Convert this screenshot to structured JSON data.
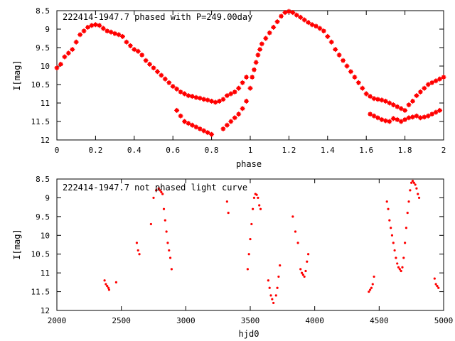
{
  "chart_data": [
    {
      "type": "scatter",
      "title": "222414-1947.7 phased with P=249.00day",
      "xlabel": "phase",
      "ylabel": "I[mag]",
      "xlim": [
        0,
        2
      ],
      "ylim": [
        8.5,
        12
      ],
      "y_inverted": true,
      "grid": false,
      "legend": "none",
      "xticks": [
        "0",
        "0.2",
        "0.4",
        "0.6",
        "0.8",
        "1",
        "1.2",
        "1.4",
        "1.6",
        "1.8",
        "2"
      ],
      "xtick_values": [
        0,
        0.2,
        0.4,
        0.6,
        0.8,
        1.0,
        1.2,
        1.4,
        1.6,
        1.8,
        2.0
      ],
      "yticks": [
        "8.5",
        "9",
        "9.5",
        "10",
        "10.5",
        "11",
        "11.5",
        "12"
      ],
      "ytick_values": [
        8.5,
        9.0,
        9.5,
        10.0,
        10.5,
        11.0,
        11.5,
        12.0
      ],
      "marker": "plus-square",
      "color": "#ff0000",
      "series": [
        {
          "points": [
            [
              0.0,
              10.05
            ],
            [
              0.02,
              9.95
            ],
            [
              0.04,
              9.75
            ],
            [
              0.06,
              9.65
            ],
            [
              0.08,
              9.55
            ],
            [
              0.1,
              9.35
            ],
            [
              0.12,
              9.15
            ],
            [
              0.14,
              9.05
            ],
            [
              0.16,
              8.95
            ],
            [
              0.18,
              8.9
            ],
            [
              0.2,
              8.88
            ],
            [
              0.22,
              8.9
            ],
            [
              0.24,
              8.98
            ],
            [
              0.26,
              9.05
            ],
            [
              0.28,
              9.08
            ],
            [
              0.3,
              9.12
            ],
            [
              0.32,
              9.15
            ],
            [
              0.34,
              9.2
            ],
            [
              0.36,
              9.35
            ],
            [
              0.38,
              9.45
            ],
            [
              0.4,
              9.55
            ],
            [
              0.42,
              9.6
            ],
            [
              0.44,
              9.7
            ],
            [
              0.46,
              9.85
            ],
            [
              0.48,
              9.95
            ],
            [
              0.5,
              10.05
            ],
            [
              0.52,
              10.15
            ],
            [
              0.54,
              10.25
            ],
            [
              0.56,
              10.35
            ],
            [
              0.58,
              10.45
            ],
            [
              0.6,
              10.55
            ],
            [
              0.62,
              10.62
            ],
            [
              0.64,
              10.7
            ],
            [
              0.66,
              10.75
            ],
            [
              0.68,
              10.8
            ],
            [
              0.7,
              10.82
            ],
            [
              0.72,
              10.85
            ],
            [
              0.74,
              10.87
            ],
            [
              0.76,
              10.9
            ],
            [
              0.78,
              10.92
            ],
            [
              0.8,
              10.95
            ],
            [
              0.82,
              10.98
            ],
            [
              0.84,
              10.95
            ],
            [
              0.86,
              10.9
            ],
            [
              0.88,
              10.8
            ],
            [
              0.9,
              10.75
            ],
            [
              0.92,
              10.7
            ],
            [
              0.94,
              10.6
            ],
            [
              0.96,
              10.45
            ],
            [
              0.98,
              10.3
            ],
            [
              0.62,
              11.2
            ],
            [
              0.64,
              11.35
            ],
            [
              0.66,
              11.5
            ],
            [
              0.68,
              11.55
            ],
            [
              0.7,
              11.6
            ],
            [
              0.72,
              11.65
            ],
            [
              0.74,
              11.7
            ],
            [
              0.76,
              11.75
            ],
            [
              0.78,
              11.8
            ],
            [
              0.8,
              11.85
            ],
            [
              0.86,
              11.7
            ],
            [
              0.88,
              11.6
            ],
            [
              0.9,
              11.5
            ],
            [
              0.92,
              11.4
            ],
            [
              0.94,
              11.3
            ],
            [
              0.96,
              11.15
            ],
            [
              0.98,
              10.95
            ],
            [
              1.0,
              10.6
            ],
            [
              1.01,
              10.3
            ],
            [
              1.02,
              10.1
            ],
            [
              1.03,
              9.9
            ],
            [
              1.04,
              9.7
            ],
            [
              1.05,
              9.55
            ],
            [
              1.06,
              9.4
            ],
            [
              1.08,
              9.25
            ],
            [
              1.1,
              9.1
            ],
            [
              1.12,
              8.95
            ],
            [
              1.14,
              8.8
            ],
            [
              1.16,
              8.65
            ],
            [
              1.18,
              8.55
            ],
            [
              1.2,
              8.52
            ],
            [
              1.22,
              8.55
            ],
            [
              1.24,
              8.62
            ],
            [
              1.26,
              8.68
            ],
            [
              1.28,
              8.75
            ],
            [
              1.3,
              8.82
            ],
            [
              1.32,
              8.88
            ],
            [
              1.34,
              8.92
            ],
            [
              1.36,
              8.98
            ],
            [
              1.38,
              9.05
            ],
            [
              1.4,
              9.2
            ],
            [
              1.42,
              9.35
            ],
            [
              1.44,
              9.55
            ],
            [
              1.46,
              9.7
            ],
            [
              1.48,
              9.85
            ],
            [
              1.5,
              10.0
            ],
            [
              1.52,
              10.15
            ],
            [
              1.54,
              10.3
            ],
            [
              1.56,
              10.45
            ],
            [
              1.58,
              10.6
            ],
            [
              1.6,
              10.75
            ],
            [
              1.62,
              10.82
            ],
            [
              1.64,
              10.88
            ],
            [
              1.66,
              10.9
            ],
            [
              1.68,
              10.92
            ],
            [
              1.7,
              10.95
            ],
            [
              1.72,
              11.0
            ],
            [
              1.74,
              11.05
            ],
            [
              1.76,
              11.1
            ],
            [
              1.78,
              11.15
            ],
            [
              1.8,
              11.2
            ],
            [
              1.82,
              11.05
            ],
            [
              1.84,
              10.95
            ],
            [
              1.86,
              10.8
            ],
            [
              1.88,
              10.7
            ],
            [
              1.9,
              10.6
            ],
            [
              1.92,
              10.5
            ],
            [
              1.94,
              10.45
            ],
            [
              1.96,
              10.4
            ],
            [
              1.98,
              10.35
            ],
            [
              1.62,
              11.3
            ],
            [
              1.64,
              11.35
            ],
            [
              1.66,
              11.4
            ],
            [
              1.68,
              11.45
            ],
            [
              1.7,
              11.48
            ],
            [
              1.72,
              11.5
            ],
            [
              1.74,
              11.42
            ],
            [
              1.76,
              11.45
            ],
            [
              1.78,
              11.5
            ],
            [
              1.8,
              11.45
            ],
            [
              1.82,
              11.4
            ],
            [
              1.84,
              11.38
            ],
            [
              1.86,
              11.35
            ],
            [
              1.88,
              11.4
            ],
            [
              1.9,
              11.38
            ],
            [
              1.92,
              11.35
            ],
            [
              1.94,
              11.3
            ],
            [
              1.96,
              11.25
            ],
            [
              1.98,
              11.2
            ],
            [
              2.0,
              10.3
            ]
          ]
        }
      ]
    },
    {
      "type": "scatter",
      "title": "222414-1947.7 not phased light curve",
      "xlabel": "hjd0",
      "ylabel": "I[mag]",
      "xlim": [
        2000,
        5000
      ],
      "ylim": [
        8.5,
        12
      ],
      "y_inverted": true,
      "grid": false,
      "legend": "none",
      "xticks": [
        "2000",
        "2500",
        "3000",
        "3500",
        "4000",
        "4500",
        "5000"
      ],
      "xtick_values": [
        2000,
        2500,
        3000,
        3500,
        4000,
        4500,
        5000
      ],
      "yticks": [
        "8.5",
        "9",
        "9.5",
        "10",
        "10.5",
        "11",
        "11.5",
        "12"
      ],
      "ytick_values": [
        8.5,
        9.0,
        9.5,
        10.0,
        10.5,
        11.0,
        11.5,
        12.0
      ],
      "marker": "dot",
      "color": "#ff0000",
      "series": [
        {
          "points": [
            [
              2370,
              11.2
            ],
            [
              2380,
              11.3
            ],
            [
              2390,
              11.35
            ],
            [
              2400,
              11.4
            ],
            [
              2405,
              11.45
            ],
            [
              2460,
              11.25
            ],
            [
              2620,
              10.2
            ],
            [
              2630,
              10.4
            ],
            [
              2640,
              10.5
            ],
            [
              2730,
              9.7
            ],
            [
              2750,
              9.0
            ],
            [
              2770,
              8.8
            ],
            [
              2790,
              8.75
            ],
            [
              2800,
              8.8
            ],
            [
              2810,
              8.85
            ],
            [
              2820,
              8.9
            ],
            [
              2830,
              9.3
            ],
            [
              2840,
              9.6
            ],
            [
              2850,
              9.9
            ],
            [
              2860,
              10.2
            ],
            [
              2870,
              10.4
            ],
            [
              2880,
              10.6
            ],
            [
              2890,
              10.9
            ],
            [
              3320,
              9.1
            ],
            [
              3330,
              9.4
            ],
            [
              3480,
              10.9
            ],
            [
              3490,
              10.5
            ],
            [
              3500,
              10.1
            ],
            [
              3510,
              9.7
            ],
            [
              3520,
              9.3
            ],
            [
              3530,
              9.0
            ],
            [
              3540,
              8.9
            ],
            [
              3550,
              8.92
            ],
            [
              3560,
              9.0
            ],
            [
              3570,
              9.2
            ],
            [
              3580,
              9.3
            ],
            [
              3640,
              11.2
            ],
            [
              3650,
              11.4
            ],
            [
              3660,
              11.6
            ],
            [
              3670,
              11.7
            ],
            [
              3680,
              11.8
            ],
            [
              3700,
              11.6
            ],
            [
              3710,
              11.4
            ],
            [
              3720,
              11.1
            ],
            [
              3730,
              10.8
            ],
            [
              3830,
              9.5
            ],
            [
              3850,
              9.9
            ],
            [
              3870,
              10.2
            ],
            [
              3890,
              10.9
            ],
            [
              3900,
              11.0
            ],
            [
              3910,
              11.05
            ],
            [
              3920,
              11.1
            ],
            [
              3930,
              10.95
            ],
            [
              3940,
              10.7
            ],
            [
              3950,
              10.5
            ],
            [
              4420,
              11.5
            ],
            [
              4430,
              11.45
            ],
            [
              4440,
              11.4
            ],
            [
              4450,
              11.3
            ],
            [
              4460,
              11.1
            ],
            [
              4560,
              9.1
            ],
            [
              4570,
              9.3
            ],
            [
              4580,
              9.6
            ],
            [
              4590,
              9.8
            ],
            [
              4600,
              10.0
            ],
            [
              4610,
              10.2
            ],
            [
              4620,
              10.4
            ],
            [
              4630,
              10.6
            ],
            [
              4640,
              10.75
            ],
            [
              4650,
              10.85
            ],
            [
              4660,
              10.9
            ],
            [
              4670,
              10.95
            ],
            [
              4680,
              10.85
            ],
            [
              4690,
              10.6
            ],
            [
              4700,
              10.2
            ],
            [
              4710,
              9.8
            ],
            [
              4720,
              9.4
            ],
            [
              4730,
              9.1
            ],
            [
              4740,
              8.8
            ],
            [
              4750,
              8.6
            ],
            [
              4760,
              8.55
            ],
            [
              4770,
              8.6
            ],
            [
              4780,
              8.65
            ],
            [
              4790,
              8.75
            ],
            [
              4800,
              8.9
            ],
            [
              4810,
              9.0
            ],
            [
              4930,
              11.15
            ],
            [
              4940,
              11.3
            ],
            [
              4950,
              11.35
            ],
            [
              4960,
              11.4
            ]
          ]
        }
      ]
    }
  ]
}
